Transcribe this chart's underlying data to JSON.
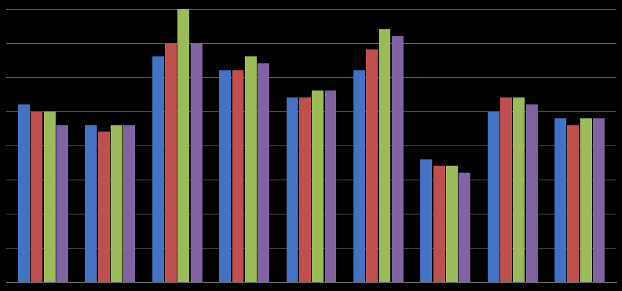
{
  "series_colors": [
    "#4472C4",
    "#C0504D",
    "#9BBB59",
    "#8064A2"
  ],
  "ylim": [
    0,
    4.0
  ],
  "yticks": [
    0.5,
    1.0,
    1.5,
    2.0,
    2.5,
    3.0,
    3.5,
    4.0
  ],
  "background_color": "#000000",
  "gridline_color": "#666666",
  "values": [
    [
      2.6,
      2.5,
      2.5,
      2.3
    ],
    [
      2.3,
      2.2,
      2.3,
      2.3
    ],
    [
      3.3,
      3.5,
      4.2,
      3.5
    ],
    [
      3.1,
      3.1,
      3.3,
      3.2
    ],
    [
      2.7,
      2.7,
      2.8,
      2.8
    ],
    [
      3.1,
      3.4,
      3.7,
      3.6
    ],
    [
      1.8,
      1.7,
      1.7,
      1.6
    ],
    [
      2.5,
      2.7,
      2.7,
      2.6
    ],
    [
      2.4,
      2.3,
      2.4,
      2.4
    ]
  ]
}
